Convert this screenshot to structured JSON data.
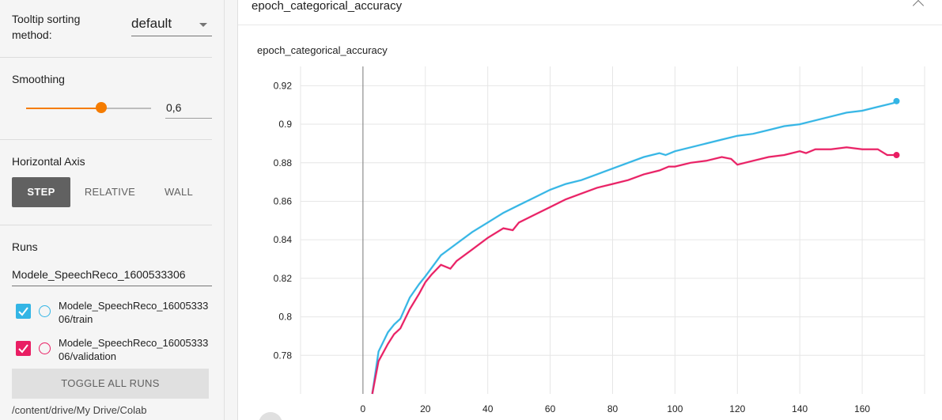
{
  "sidebar": {
    "sort": {
      "label": "Tooltip sorting method:",
      "value": "default"
    },
    "smoothing": {
      "title": "Smoothing",
      "value": "0,6",
      "slider_fraction": 0.6
    },
    "horizontal_axis": {
      "title": "Horizontal Axis",
      "options": [
        "STEP",
        "RELATIVE",
        "WALL"
      ],
      "selected": "STEP"
    },
    "runs": {
      "title": "Runs",
      "filter_value": "Modele_SpeechReco_1600533306",
      "items": [
        {
          "label": "Modele_SpeechReco_1600533306/train",
          "checked": true,
          "color": "#33b5e5"
        },
        {
          "label": "Modele_SpeechReco_1600533306/validation",
          "checked": true,
          "color": "#e91e63"
        }
      ],
      "toggle_label": "TOGGLE ALL RUNS",
      "logdir": "/content/drive/My Drive/Colab"
    }
  },
  "main": {
    "card_title": "epoch_categorical_accuracy",
    "chart_title": "epoch_categorical_accuracy"
  },
  "chart_data": {
    "type": "line",
    "title": "epoch_categorical_accuracy",
    "xlabel": "",
    "ylabel": "",
    "xlim": [
      -20,
      180
    ],
    "ylim": [
      0.76,
      0.93
    ],
    "x_ticks": [
      0,
      20,
      40,
      60,
      80,
      100,
      120,
      140,
      160
    ],
    "y_ticks": [
      0.78,
      0.8,
      0.82,
      0.84,
      0.86,
      0.88,
      0.9,
      0.92
    ],
    "x_tick_labels": [
      "0",
      "20",
      "40",
      "60",
      "80",
      "100",
      "120",
      "140",
      "160"
    ],
    "y_tick_labels": [
      "0.78",
      "0.8",
      "0.82",
      "0.84",
      "0.86",
      "0.88",
      "0.9",
      "0.92"
    ],
    "grid": true,
    "series": [
      {
        "color": "#33b5e5",
        "x": [
          3,
          5,
          8,
          10,
          12,
          15,
          18,
          20,
          25,
          30,
          35,
          40,
          45,
          50,
          55,
          60,
          65,
          70,
          75,
          80,
          85,
          90,
          95,
          97,
          100,
          105,
          110,
          115,
          120,
          125,
          130,
          135,
          140,
          145,
          150,
          155,
          160,
          165,
          170,
          171
        ],
        "values": [
          0.76,
          0.782,
          0.792,
          0.796,
          0.799,
          0.81,
          0.817,
          0.821,
          0.832,
          0.838,
          0.844,
          0.849,
          0.854,
          0.858,
          0.862,
          0.866,
          0.869,
          0.871,
          0.874,
          0.877,
          0.88,
          0.883,
          0.885,
          0.884,
          0.886,
          0.888,
          0.89,
          0.892,
          0.894,
          0.895,
          0.897,
          0.899,
          0.9,
          0.902,
          0.904,
          0.906,
          0.907,
          0.909,
          0.911,
          0.912
        ]
      },
      {
        "color": "#e91e63",
        "x": [
          3,
          5,
          8,
          10,
          12,
          15,
          18,
          20,
          22,
          25,
          28,
          30,
          35,
          40,
          45,
          48,
          50,
          55,
          60,
          65,
          70,
          75,
          80,
          85,
          90,
          95,
          98,
          100,
          105,
          110,
          115,
          118,
          120,
          125,
          130,
          135,
          140,
          142,
          145,
          150,
          155,
          160,
          165,
          168,
          171
        ],
        "values": [
          0.76,
          0.777,
          0.786,
          0.791,
          0.794,
          0.804,
          0.812,
          0.818,
          0.822,
          0.827,
          0.825,
          0.829,
          0.835,
          0.841,
          0.846,
          0.845,
          0.849,
          0.853,
          0.857,
          0.861,
          0.864,
          0.867,
          0.869,
          0.871,
          0.874,
          0.876,
          0.878,
          0.878,
          0.88,
          0.881,
          0.883,
          0.882,
          0.879,
          0.881,
          0.883,
          0.884,
          0.886,
          0.885,
          0.887,
          0.887,
          0.888,
          0.887,
          0.887,
          0.884,
          0.884
        ]
      }
    ]
  }
}
